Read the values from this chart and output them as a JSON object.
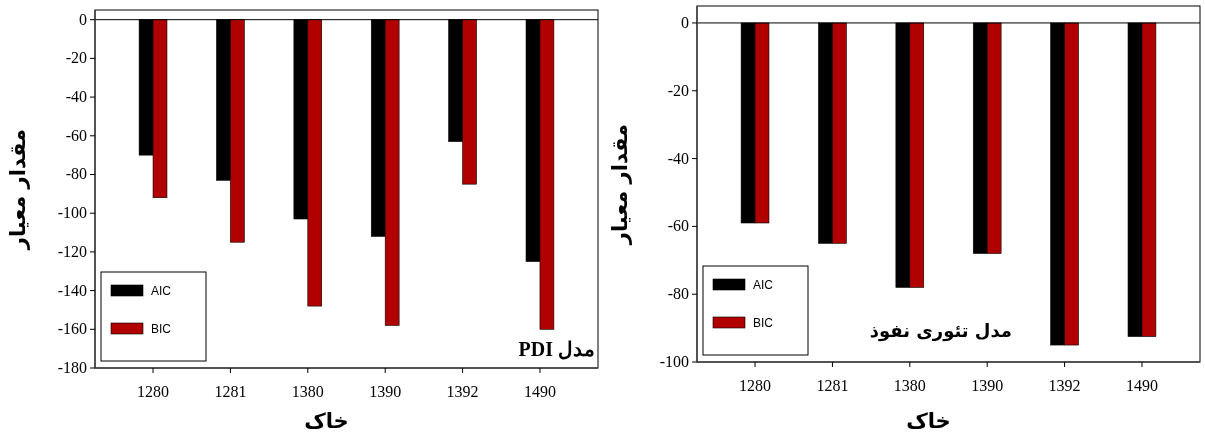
{
  "chart_data": [
    {
      "type": "bar",
      "categories": [
        "1280",
        "1281",
        "1380",
        "1390",
        "1392",
        "1490"
      ],
      "series": [
        {
          "name": "AIC",
          "color": "#000000",
          "values": [
            -70,
            -83,
            -103,
            -112,
            -63,
            -125
          ]
        },
        {
          "name": "BIC",
          "color": "#b00000",
          "values": [
            -92,
            -115,
            -148,
            -158,
            -85,
            -160
          ]
        }
      ],
      "xlabel": "خاک",
      "ylabel": "مقدار معیار",
      "ylim": [
        -180,
        5
      ],
      "yticks": [
        0,
        -20,
        -40,
        -60,
        -80,
        -100,
        -120,
        -140,
        -160,
        -180
      ],
      "ref_lines": [
        {
          "axis": "y",
          "value": 0
        }
      ],
      "annotations": [
        "مدل PDI"
      ],
      "legend": "bottom left",
      "grid": false
    },
    {
      "type": "bar",
      "categories": [
        "1280",
        "1281",
        "1380",
        "1390",
        "1392",
        "1490"
      ],
      "series": [
        {
          "name": "AIC",
          "color": "#000000",
          "values": [
            -59,
            -65,
            -78,
            -68,
            -95,
            -92.5
          ]
        },
        {
          "name": "BIC",
          "color": "#b00000",
          "values": [
            -59,
            -65,
            -78,
            -68,
            -95,
            -92.5
          ]
        }
      ],
      "xlabel": "خاک",
      "ylabel": "مقدار معیار",
      "ylim": [
        -100,
        5
      ],
      "yticks": [
        0,
        -20,
        -40,
        -60,
        -80,
        -100
      ],
      "ref_lines": [
        {
          "axis": "y",
          "value": 0
        }
      ],
      "annotations": [
        "مدل تئوری نفوذ"
      ],
      "legend": "bottom left",
      "grid": false
    }
  ]
}
